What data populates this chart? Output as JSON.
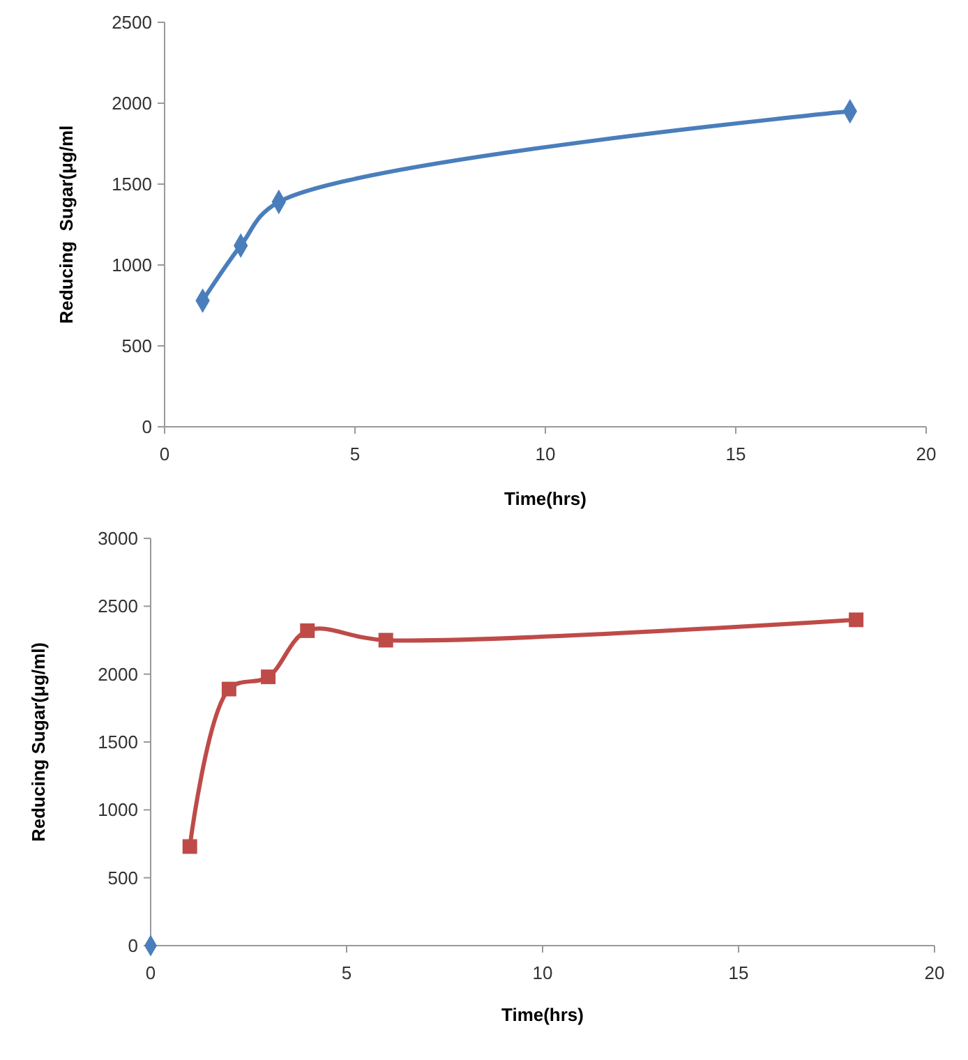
{
  "chart_data": [
    {
      "type": "line",
      "xlabel": "Time(hrs)",
      "ylabel": "Reducing  Sugar(μg/ml",
      "xlim": [
        0,
        20
      ],
      "xticks": [
        0,
        5,
        10,
        15,
        20
      ],
      "ylim": [
        0,
        2500
      ],
      "yticks": [
        0,
        500,
        1000,
        1500,
        2000,
        2500
      ],
      "grid": false,
      "marker": "diamond",
      "line_style": "solid",
      "series": [
        {
          "color": "#4a7ebb",
          "x": [
            1,
            2,
            3,
            18
          ],
          "values": [
            780,
            1120,
            1390,
            1950
          ]
        }
      ]
    },
    {
      "type": "line",
      "xlabel": "Time(hrs)",
      "ylabel": "Reducing Sugar(μg/ml)",
      "xlim": [
        0,
        20
      ],
      "xticks": [
        0,
        5,
        10,
        15,
        20
      ],
      "ylim": [
        0,
        3000
      ],
      "yticks": [
        0,
        500,
        1000,
        1500,
        2000,
        2500,
        3000
      ],
      "grid": false,
      "marker": "square",
      "line_style": "solid",
      "series": [
        {
          "type": "scatter",
          "marker": "diamond",
          "color": "#4a7ebb",
          "x": [
            0
          ],
          "values": [
            0
          ]
        },
        {
          "color": "#be4b48",
          "x": [
            1,
            2,
            3,
            4,
            6,
            18
          ],
          "values": [
            730,
            1890,
            1980,
            2320,
            2250,
            2400
          ]
        }
      ]
    }
  ]
}
